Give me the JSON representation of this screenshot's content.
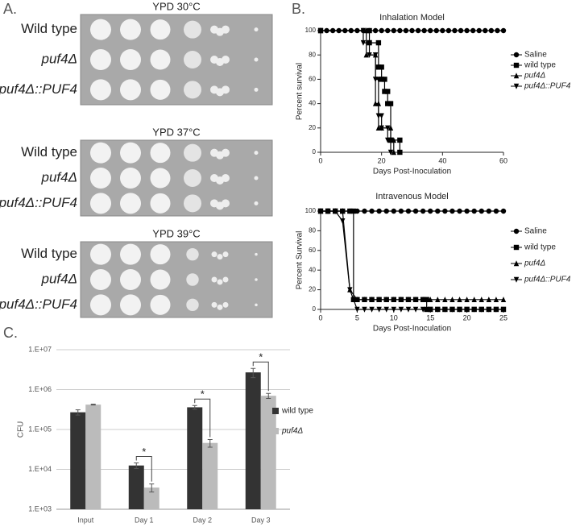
{
  "panel_labels": [
    "A.",
    "B.",
    "C."
  ],
  "plates": [
    {
      "title": "YPD 30°C",
      "rows": [
        "Wild type",
        "puf4Δ",
        "puf4Δ::PUF4"
      ]
    },
    {
      "title": "YPD 37°C",
      "rows": [
        "Wild type",
        "puf4Δ",
        "puf4Δ::PUF4"
      ]
    },
    {
      "title": "YPD 39°C",
      "rows": [
        "Wild type",
        "puf4Δ",
        "puf4Δ::PUF4"
      ]
    }
  ],
  "chart_data": [
    {
      "type": "line",
      "title": "Inhalation Model",
      "x_label": "Days Post-Inoculation",
      "y_label": "Percent survival",
      "xlim": [
        0,
        60
      ],
      "xticks": [
        0,
        20,
        40,
        60
      ],
      "ylim": [
        0,
        100
      ],
      "yticks": [
        0,
        20,
        40,
        60,
        80,
        100
      ],
      "legend": "right",
      "series": [
        {
          "name": "Saline",
          "color": "#000000",
          "marker": "circle",
          "italic": false,
          "x": [
            0,
            2,
            4,
            6,
            8,
            10,
            12,
            14,
            16,
            18,
            20,
            22,
            24,
            26,
            28,
            30,
            32,
            34,
            36,
            38,
            40,
            42,
            44,
            46,
            48,
            50,
            52,
            54,
            56,
            58,
            60
          ],
          "values": [
            100,
            100,
            100,
            100,
            100,
            100,
            100,
            100,
            100,
            100,
            100,
            100,
            100,
            100,
            100,
            100,
            100,
            100,
            100,
            100,
            100,
            100,
            100,
            100,
            100,
            100,
            100,
            100,
            100,
            100,
            100
          ]
        },
        {
          "name": "wild type",
          "color": "#000000",
          "marker": "square",
          "italic": false,
          "x": [
            0,
            16,
            16,
            19,
            19,
            20,
            20,
            21,
            21,
            22,
            22,
            23,
            23,
            26,
            26
          ],
          "values": [
            100,
            100,
            90,
            90,
            70,
            70,
            60,
            60,
            50,
            50,
            40,
            40,
            10,
            10,
            0
          ]
        },
        {
          "name": "puf4Δ",
          "color": "#000000",
          "marker": "triangle-up",
          "italic": true,
          "x": [
            0,
            15,
            15,
            18,
            18,
            19,
            19,
            20,
            20,
            23,
            23,
            24,
            24
          ],
          "values": [
            100,
            100,
            80,
            80,
            40,
            40,
            20,
            20,
            20,
            20,
            10,
            10,
            0
          ]
        },
        {
          "name": "puf4Δ::PUF4",
          "color": "#000000",
          "marker": "triangle-down",
          "italic": true,
          "x": [
            0,
            14,
            14,
            16,
            16,
            18,
            18,
            19,
            19,
            20,
            20,
            22,
            22,
            23,
            23
          ],
          "values": [
            100,
            100,
            90,
            90,
            80,
            80,
            60,
            60,
            30,
            30,
            20,
            20,
            10,
            10,
            0
          ]
        }
      ]
    },
    {
      "type": "line",
      "title": "Intravenous Model",
      "x_label": "Days  Post-Inoculation",
      "y_label": "Percent Survival",
      "xlim": [
        0,
        25
      ],
      "xticks": [
        0,
        5,
        10,
        15,
        20,
        25
      ],
      "ylim": [
        0,
        100
      ],
      "yticks": [
        0,
        20,
        40,
        60,
        80,
        100
      ],
      "legend": "right",
      "series": [
        {
          "name": "Saline",
          "color": "#000000",
          "marker": "circle",
          "italic": false,
          "x": [
            0,
            1,
            2,
            3,
            4,
            5,
            6,
            7,
            8,
            9,
            10,
            11,
            12,
            13,
            14,
            15,
            16,
            17,
            18,
            19,
            20,
            21,
            22,
            23,
            24,
            25
          ],
          "values": [
            100,
            100,
            100,
            100,
            100,
            100,
            100,
            100,
            100,
            100,
            100,
            100,
            100,
            100,
            100,
            100,
            100,
            100,
            100,
            100,
            100,
            100,
            100,
            100,
            100,
            100
          ]
        },
        {
          "name": "wild type",
          "color": "#000000",
          "marker": "square",
          "italic": false,
          "x": [
            0,
            1,
            2,
            3,
            4,
            4.5,
            4.5,
            5,
            6,
            7,
            8,
            9,
            10,
            11,
            12,
            13,
            14,
            14.5,
            14.5,
            15,
            16,
            17,
            18,
            19,
            20,
            21,
            22,
            23,
            24,
            25
          ],
          "values": [
            100,
            100,
            100,
            100,
            100,
            100,
            10,
            10,
            10,
            10,
            10,
            10,
            10,
            10,
            10,
            10,
            10,
            10,
            0,
            0,
            0,
            0,
            0,
            0,
            0,
            0,
            0,
            0,
            0,
            0
          ]
        },
        {
          "name": "puf4Δ",
          "color": "#000000",
          "marker": "triangle-up",
          "italic": true,
          "x": [
            0,
            1,
            2,
            3,
            4,
            5,
            6,
            7,
            8,
            9,
            10,
            11,
            12,
            13,
            14,
            15,
            16,
            17,
            18,
            19,
            20,
            21,
            22,
            23,
            24,
            25
          ],
          "values": [
            100,
            100,
            100,
            100,
            20,
            10,
            10,
            10,
            10,
            10,
            10,
            10,
            10,
            10,
            10,
            10,
            10,
            10,
            10,
            10,
            10,
            10,
            10,
            10,
            10,
            10
          ]
        },
        {
          "name": "puf4Δ::PUF4",
          "color": "#000000",
          "marker": "triangle-down",
          "italic": true,
          "x": [
            0,
            1,
            2,
            3,
            4,
            5,
            6,
            7,
            8,
            9,
            10,
            11,
            12,
            13,
            14,
            15,
            16,
            17,
            18,
            19,
            20,
            21,
            22,
            23,
            24,
            25
          ],
          "values": [
            100,
            100,
            100,
            90,
            20,
            0,
            0,
            0,
            0,
            0,
            0,
            0,
            0,
            0,
            0,
            0,
            0,
            0,
            0,
            0,
            0,
            0,
            0,
            0,
            0,
            0
          ]
        }
      ]
    },
    {
      "type": "bar",
      "y_label": "CFU",
      "log_scale": true,
      "legend": "right",
      "categories": [
        "Input",
        "Day 1",
        "Day 2",
        "Day 3"
      ],
      "ylim": [
        1000,
        10000000
      ],
      "yticks": [
        {
          "value": 1000,
          "label": "1.E+03"
        },
        {
          "value": 10000,
          "label": "1.E+04"
        },
        {
          "value": 100000,
          "label": "1.E+05"
        },
        {
          "value": 1000000,
          "label": "1.E+06"
        },
        {
          "value": 10000000,
          "label": "1.E+07"
        }
      ],
      "grid": true,
      "annotations": [
        "*",
        "*",
        "*"
      ],
      "series": [
        {
          "name": "wild type",
          "color": "#333333",
          "italic": false,
          "values": [
            270000,
            12500,
            360000,
            2700000
          ],
          "errors": [
            40000,
            2000,
            40000,
            700000
          ]
        },
        {
          "name": "puf4Δ",
          "color": "#bbbbbb",
          "italic": true,
          "values": [
            420000,
            3500,
            46000,
            700000
          ],
          "errors": [
            10000,
            800,
            10000,
            100000
          ]
        }
      ]
    }
  ]
}
